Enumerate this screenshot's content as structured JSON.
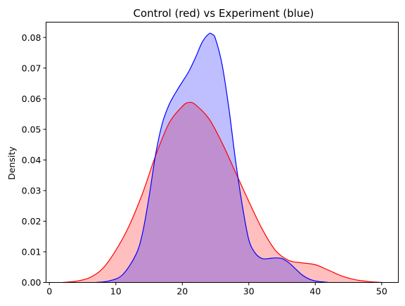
{
  "chart_data": {
    "type": "area",
    "title": "Control (red) vs Experiment (blue)",
    "xlabel": "",
    "ylabel": "Density",
    "xlim": [
      -0.5,
      52.5
    ],
    "ylim": [
      0,
      0.085
    ],
    "xticks": [
      0,
      10,
      20,
      30,
      40,
      50
    ],
    "xtick_labels": [
      "0",
      "10",
      "20",
      "30",
      "40",
      "50"
    ],
    "yticks": [
      0,
      0.01,
      0.02,
      0.03,
      0.04,
      0.05,
      0.06,
      0.07,
      0.08
    ],
    "ytick_labels": [
      "0.00",
      "0.01",
      "0.02",
      "0.03",
      "0.04",
      "0.05",
      "0.06",
      "0.07",
      "0.08"
    ],
    "grid": false,
    "legend": "none",
    "series": [
      {
        "color": "#ff0000",
        "fill_color": "#ffbfbf",
        "x": [
          2,
          4,
          6,
          8,
          10,
          12,
          14,
          16,
          18,
          20,
          21,
          22,
          24,
          26,
          28,
          30,
          32,
          34,
          36,
          38,
          40,
          42,
          44,
          46,
          48,
          50
        ],
        "y": [
          0,
          0.0004,
          0.0015,
          0.0045,
          0.0105,
          0.0185,
          0.029,
          0.0415,
          0.052,
          0.0575,
          0.0588,
          0.058,
          0.0535,
          0.0455,
          0.036,
          0.0265,
          0.0175,
          0.0105,
          0.0072,
          0.0064,
          0.0058,
          0.004,
          0.0021,
          0.0009,
          0.0003,
          0
        ]
      },
      {
        "color": "#0000ff",
        "fill_color": "#bfbfff",
        "x": [
          7,
          9,
          11,
          13,
          14,
          15,
          16,
          17,
          18,
          19,
          20,
          21,
          22,
          23,
          24,
          24.5,
          25,
          26,
          27,
          28,
          29,
          30,
          31,
          32,
          33,
          34,
          35,
          36,
          37,
          38,
          39,
          40,
          41,
          42
        ],
        "y": [
          0,
          0.0005,
          0.0025,
          0.009,
          0.016,
          0.028,
          0.042,
          0.052,
          0.058,
          0.062,
          0.0655,
          0.069,
          0.0735,
          0.0785,
          0.0812,
          0.081,
          0.0795,
          0.071,
          0.057,
          0.04,
          0.0255,
          0.014,
          0.0095,
          0.0078,
          0.0078,
          0.008,
          0.0078,
          0.0065,
          0.0045,
          0.0025,
          0.0012,
          0.0005,
          0.0002,
          0
        ]
      }
    ]
  }
}
